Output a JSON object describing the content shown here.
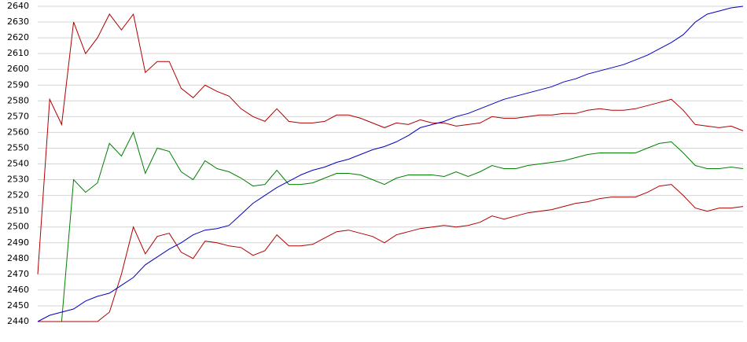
{
  "chart_data": {
    "type": "line",
    "ylim": [
      2440,
      2640
    ],
    "yticks": [
      2440,
      2450,
      2460,
      2470,
      2480,
      2490,
      2500,
      2510,
      2520,
      2530,
      2540,
      2550,
      2560,
      2570,
      2580,
      2590,
      2600,
      2610,
      2620,
      2630,
      2640
    ],
    "grid": true,
    "series": [
      {
        "color": "#b00000",
        "values": [
          2470,
          2581,
          2565,
          2630,
          2610,
          2620,
          2635,
          2625,
          2635,
          2598,
          2605,
          2605,
          2588,
          2582,
          2590,
          2586,
          2583,
          2575,
          2570,
          2567,
          2575,
          2567,
          2566,
          2566,
          2567,
          2571,
          2571,
          2569,
          2566,
          2563,
          2566,
          2565,
          2568,
          2566,
          2566,
          2564,
          2565,
          2566,
          2570,
          2569,
          2569,
          2570,
          2571,
          2571,
          2572,
          2572,
          2574,
          2575,
          2574,
          2574,
          2575,
          2577,
          2579,
          2581,
          2574,
          2565,
          2564,
          2563,
          2564,
          2561
        ]
      },
      {
        "color": "#008000",
        "values": [
          2440,
          2440,
          2440,
          2530,
          2522,
          2528,
          2553,
          2545,
          2560,
          2534,
          2550,
          2548,
          2535,
          2530,
          2542,
          2537,
          2535,
          2531,
          2526,
          2527,
          2536,
          2527,
          2527,
          2528,
          2531,
          2534,
          2534,
          2533,
          2530,
          2527,
          2531,
          2533,
          2533,
          2533,
          2532,
          2535,
          2532,
          2535,
          2539,
          2537,
          2537,
          2539,
          2540,
          2541,
          2542,
          2544,
          2546,
          2547,
          2547,
          2547,
          2547,
          2550,
          2553,
          2554,
          2547,
          2539,
          2537,
          2537,
          2538,
          2537
        ]
      },
      {
        "color": "#b00000",
        "values": [
          2440,
          2440,
          2440,
          2440,
          2440,
          2440,
          2446,
          2470,
          2500,
          2483,
          2494,
          2496,
          2484,
          2480,
          2491,
          2490,
          2488,
          2487,
          2482,
          2485,
          2495,
          2488,
          2488,
          2489,
          2493,
          2497,
          2498,
          2496,
          2494,
          2490,
          2495,
          2497,
          2499,
          2500,
          2501,
          2500,
          2501,
          2503,
          2507,
          2505,
          2507,
          2509,
          2510,
          2511,
          2513,
          2515,
          2516,
          2518,
          2519,
          2519,
          2519,
          2522,
          2526,
          2527,
          2520,
          2512,
          2510,
          2512,
          2512,
          2513
        ]
      },
      {
        "color": "#0000c0",
        "values": [
          2440,
          2444,
          2446,
          2448,
          2453,
          2456,
          2458,
          2463,
          2468,
          2476,
          2481,
          2486,
          2490,
          2495,
          2498,
          2499,
          2501,
          2508,
          2515,
          2520,
          2525,
          2529,
          2533,
          2536,
          2538,
          2541,
          2543,
          2546,
          2549,
          2551,
          2554,
          2558,
          2563,
          2565,
          2567,
          2570,
          2572,
          2575,
          2578,
          2581,
          2583,
          2585,
          2587,
          2589,
          2592,
          2594,
          2597,
          2599,
          2601,
          2603,
          2606,
          2609,
          2613,
          2617,
          2622,
          2630,
          2635,
          2637,
          2639,
          2640
        ]
      }
    ]
  }
}
